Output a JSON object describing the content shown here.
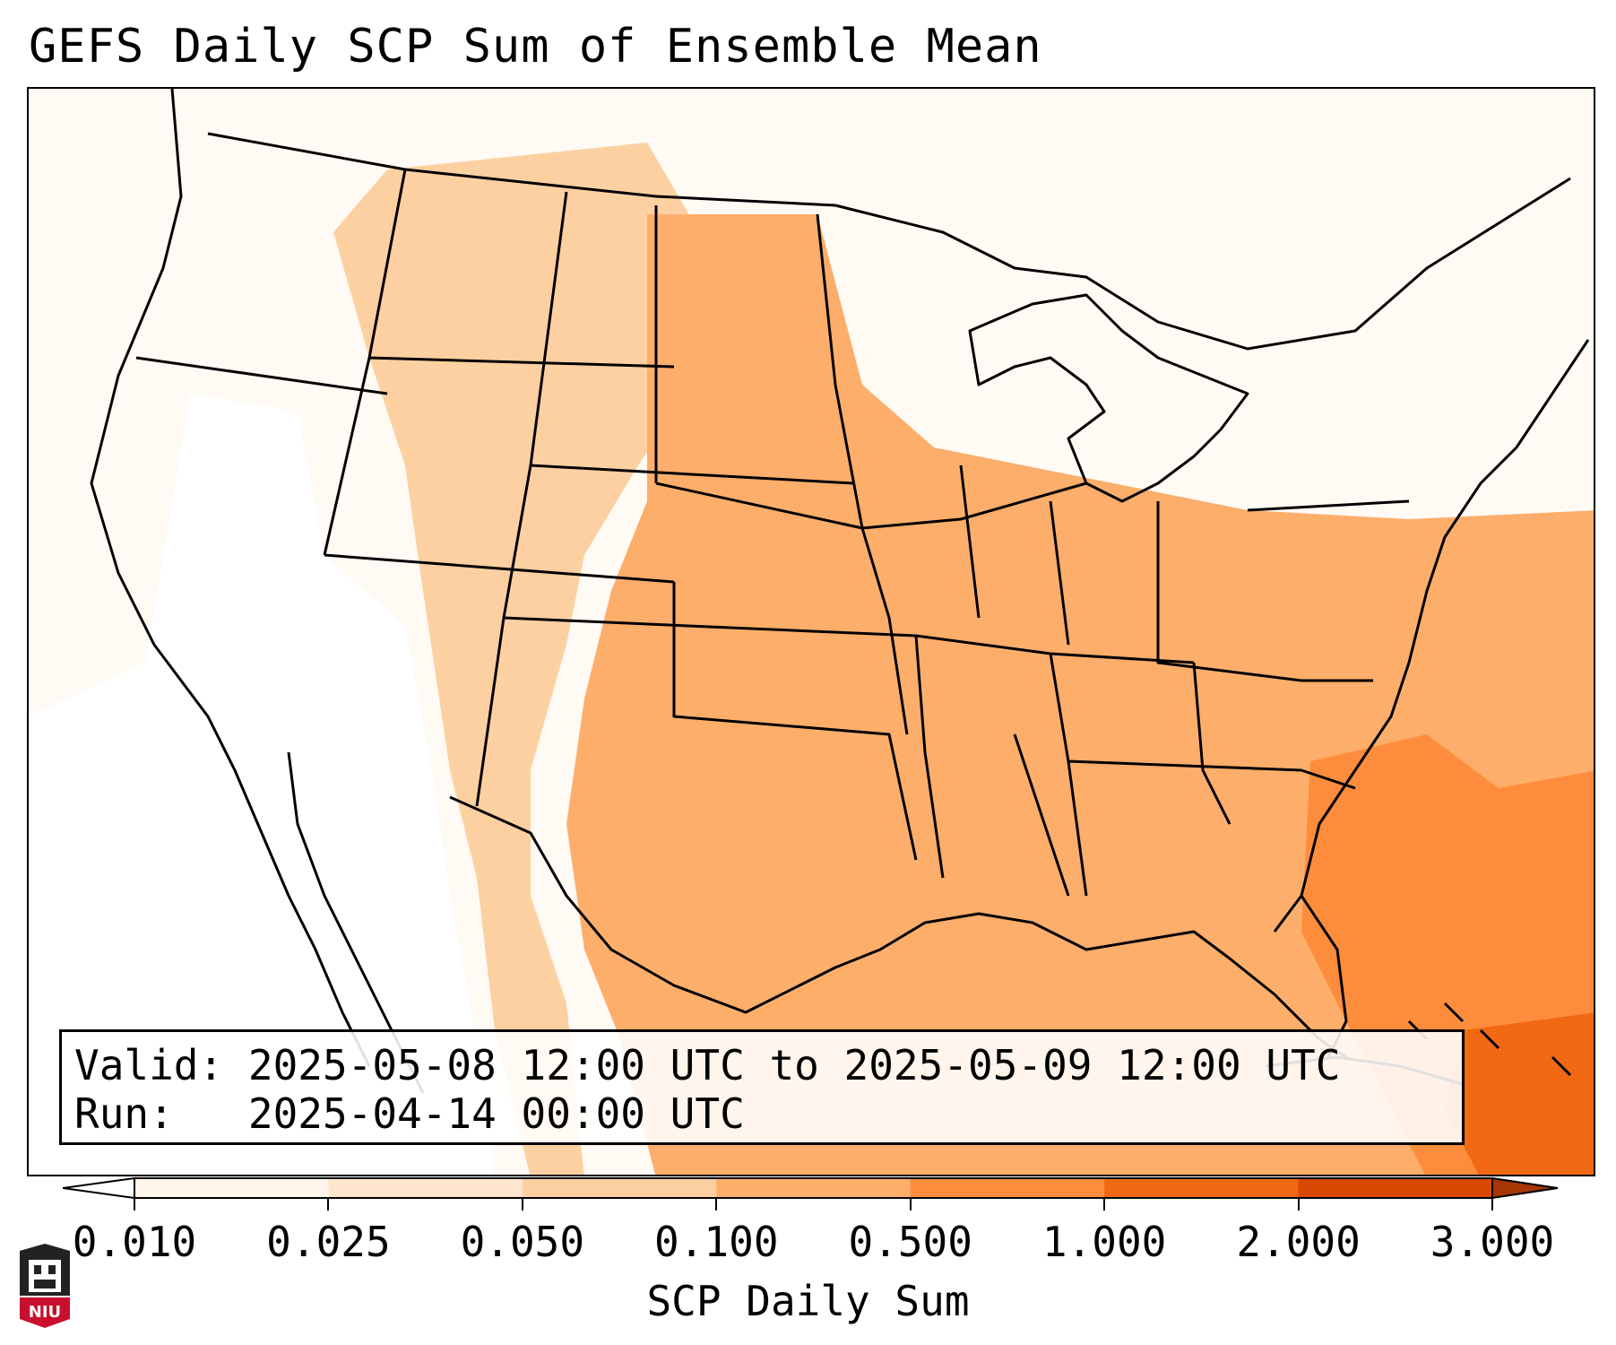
{
  "title": "GEFS Daily SCP Sum of Ensemble Mean",
  "info": {
    "valid_label": "Valid:",
    "valid_value": "2025-05-08 12:00 UTC to 2025-05-09 12:00 UTC",
    "run_label": "Run:",
    "run_value": "2025-04-14 00:00 UTC"
  },
  "colorbar": {
    "label": "SCP Daily Sum",
    "ticks": [
      "0.010",
      "0.025",
      "0.050",
      "0.100",
      "0.500",
      "1.000",
      "2.000",
      "3.000"
    ],
    "colors": [
      "#fff5eb",
      "#fee6ce",
      "#fdd0a2",
      "#fdae6b",
      "#fd8d3c",
      "#f16913",
      "#d94801"
    ],
    "under_color": "#ffffff",
    "over_color": "#a63603"
  },
  "logo": {
    "text": "NIU"
  },
  "map": {
    "boundary_color": "#000000",
    "field": "SCP Daily Sum (ensemble mean)"
  }
}
